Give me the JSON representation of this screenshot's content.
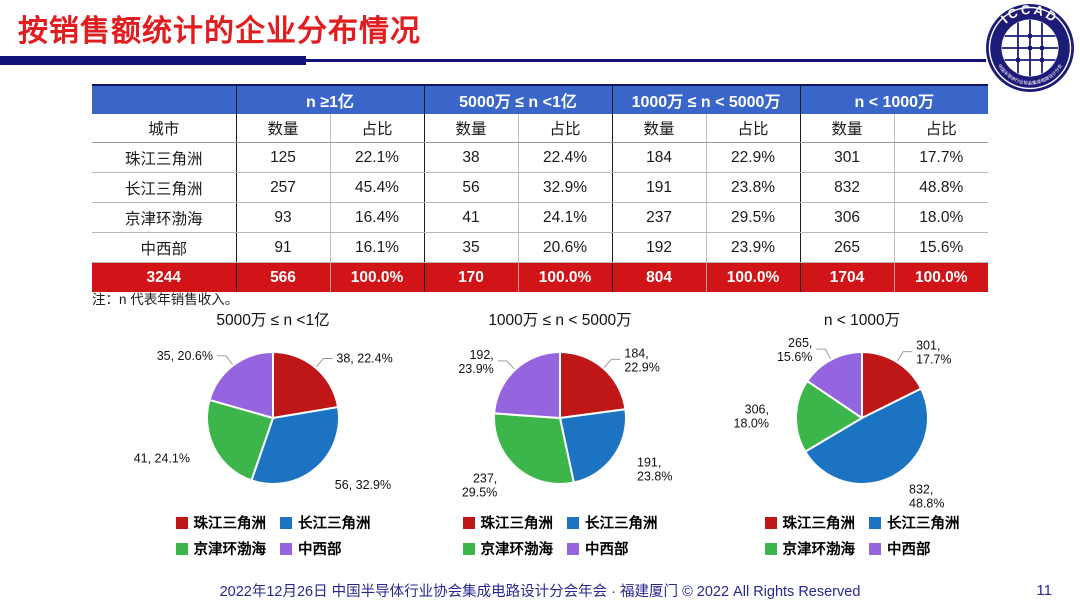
{
  "slide": {
    "title": "按销售额统计的企业分布情况",
    "note": "注：n 代表年销售收入。",
    "footer": "2022年12月26日 中国半导体行业协会集成电路设计分会年会 · 福建厦门 © 2022 All Rights Reserved",
    "page_number": "11"
  },
  "logo": {
    "text": "ICCAD",
    "subtext": "中国半导体行业协会集成电路设计分会"
  },
  "table": {
    "group_headers": [
      "n ≥1亿",
      "5000万 ≤ n <1亿",
      "1000万 ≤ n < 5000万",
      "n < 1000万"
    ],
    "sub_headers": [
      "城市",
      "数量",
      "占比",
      "数量",
      "占比",
      "数量",
      "占比",
      "数量",
      "占比"
    ],
    "rows": [
      [
        "珠江三角洲",
        "125",
        "22.1%",
        "38",
        "22.4%",
        "184",
        "22.9%",
        "301",
        "17.7%"
      ],
      [
        "长江三角洲",
        "257",
        "45.4%",
        "56",
        "32.9%",
        "191",
        "23.8%",
        "832",
        "48.8%"
      ],
      [
        "京津环渤海",
        "93",
        "16.4%",
        "41",
        "24.1%",
        "237",
        "29.5%",
        "306",
        "18.0%"
      ],
      [
        "中西部",
        "91",
        "16.1%",
        "35",
        "20.6%",
        "192",
        "23.9%",
        "265",
        "15.6%"
      ]
    ],
    "total_row": [
      "3244",
      "566",
      "100.0%",
      "170",
      "100.0%",
      "804",
      "100.0%",
      "1704",
      "100.0%"
    ]
  },
  "chart_data": [
    {
      "type": "pie",
      "title": "5000万 ≤ n <1亿",
      "categories": [
        "珠江三角洲",
        "长江三角洲",
        "京津环渤海",
        "中西部"
      ],
      "values": [
        38,
        56,
        41,
        35
      ],
      "percent_labels": [
        "22.4%",
        "32.9%",
        "24.1%",
        "20.6%"
      ],
      "colors": [
        "#bf1717",
        "#1b73c2",
        "#3cb54a",
        "#9565e0"
      ],
      "legend_position": "bottom",
      "label_lines": 1
    },
    {
      "type": "pie",
      "title": "1000万 ≤ n < 5000万",
      "categories": [
        "珠江三角洲",
        "长江三角洲",
        "京津环渤海",
        "中西部"
      ],
      "values": [
        184,
        191,
        237,
        192
      ],
      "percent_labels": [
        "22.9%",
        "23.8%",
        "29.5%",
        "23.9%"
      ],
      "colors": [
        "#bf1717",
        "#1b73c2",
        "#3cb54a",
        "#9565e0"
      ],
      "legend_position": "bottom",
      "label_lines": 2
    },
    {
      "type": "pie",
      "title": "n < 1000万",
      "categories": [
        "珠江三角洲",
        "长江三角洲",
        "京津环渤海",
        "中西部"
      ],
      "values": [
        301,
        832,
        306,
        265
      ],
      "percent_labels": [
        "17.7%",
        "48.8%",
        "18.0%",
        "15.6%"
      ],
      "colors": [
        "#bf1717",
        "#1b73c2",
        "#3cb54a",
        "#9565e0"
      ],
      "legend_position": "bottom",
      "label_lines": 2
    }
  ],
  "legend": {
    "items": [
      {
        "label": "珠江三角洲",
        "color": "#bf1717"
      },
      {
        "label": "长江三角洲",
        "color": "#1b73c2"
      },
      {
        "label": "京津环渤海",
        "color": "#3cb54a"
      },
      {
        "label": "中西部",
        "color": "#9565e0"
      }
    ]
  },
  "colors": {
    "title_red": "#e11d1f",
    "rule_navy": "#12127a",
    "header_blue": "#3a66c9",
    "total_red": "#d11418",
    "footer_navy": "#28288f",
    "logo_navy": "#1c1c78"
  }
}
